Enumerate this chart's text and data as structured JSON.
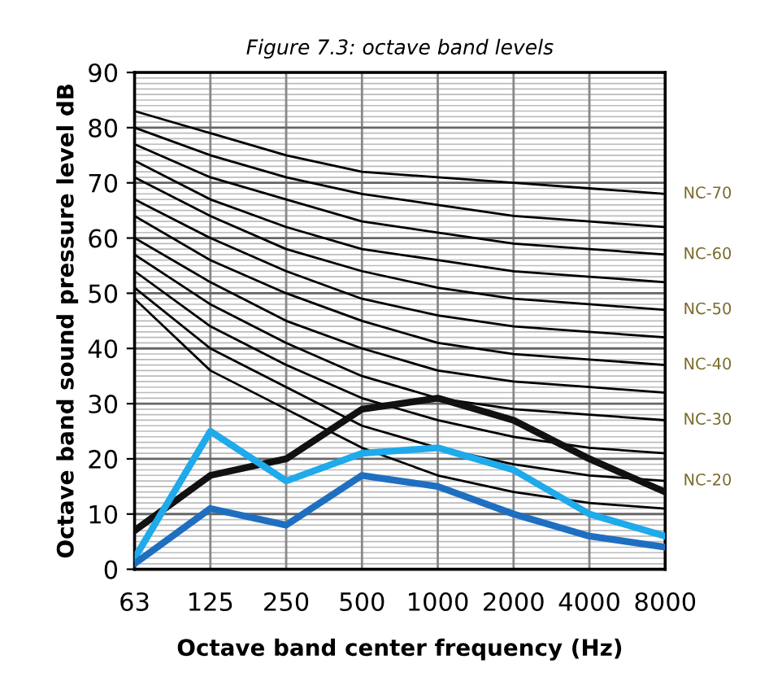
{
  "chart_data": {
    "type": "line",
    "title": "Figure 7.3: octave band levels",
    "xlabel": "Octave band center frequency (Hz)",
    "ylabel": "Octave band sound pressure level dB",
    "categories": [
      "63",
      "125",
      "250",
      "500",
      "1000",
      "2000",
      "4000",
      "8000"
    ],
    "ylim": [
      0,
      90
    ],
    "yticks": [
      0,
      10,
      20,
      30,
      40,
      50,
      60,
      70,
      80,
      90
    ],
    "grid": true,
    "marker": "none",
    "series": [
      {
        "name": "NC-70",
        "color": "#000000",
        "values": [
          83,
          79,
          75,
          72,
          71,
          70,
          69,
          68
        ]
      },
      {
        "color": "#000000",
        "values": [
          80,
          75,
          71,
          68,
          66,
          64,
          63,
          62
        ]
      },
      {
        "name": "NC-60",
        "color": "#000000",
        "values": [
          77,
          71,
          67,
          63,
          61,
          59,
          58,
          57
        ]
      },
      {
        "color": "#000000",
        "values": [
          74,
          67,
          62,
          58,
          56,
          54,
          53,
          52
        ]
      },
      {
        "name": "NC-50",
        "color": "#000000",
        "values": [
          71,
          64,
          58,
          54,
          51,
          49,
          48,
          47
        ]
      },
      {
        "color": "#000000",
        "values": [
          67,
          60,
          54,
          49,
          46,
          44,
          43,
          42
        ]
      },
      {
        "name": "NC-40",
        "color": "#000000",
        "values": [
          64,
          56,
          50,
          45,
          41,
          39,
          38,
          37
        ]
      },
      {
        "color": "#000000",
        "values": [
          60,
          52,
          45,
          40,
          36,
          34,
          33,
          32
        ]
      },
      {
        "name": "NC-30",
        "color": "#000000",
        "values": [
          57,
          48,
          41,
          35,
          31,
          29,
          28,
          27
        ]
      },
      {
        "color": "#000000",
        "values": [
          54,
          44,
          37,
          31,
          27,
          24,
          22,
          21
        ]
      },
      {
        "name": "NC-20",
        "color": "#000000",
        "values": [
          51,
          40,
          33,
          26,
          22,
          19,
          17,
          16
        ]
      },
      {
        "color": "#000000",
        "values": [
          49,
          36,
          29,
          22,
          17,
          14,
          12,
          11
        ]
      },
      {
        "color": "#111111",
        "values": [
          7,
          17,
          20,
          29,
          31,
          27,
          20,
          14
        ]
      },
      {
        "color": "#1eaaeb",
        "values": [
          2,
          25,
          16,
          21,
          22,
          18,
          10,
          6
        ]
      },
      {
        "color": "#1f6fc1",
        "values": [
          1,
          11,
          8,
          17,
          15,
          10,
          6,
          4
        ]
      }
    ]
  }
}
